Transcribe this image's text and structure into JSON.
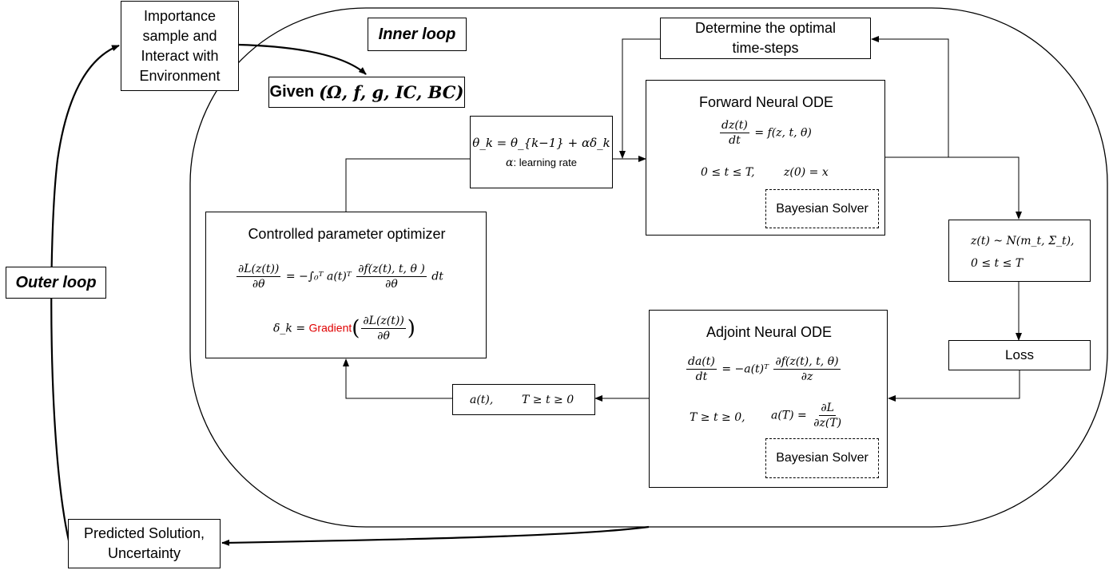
{
  "outer": {
    "loop_label": "Outer loop",
    "importance_text": [
      "Importance",
      "sample and",
      "Interact with",
      "Environment"
    ],
    "predicted_text": [
      "Predicted Solution,",
      "Uncertainty"
    ]
  },
  "inner": {
    "loop_label": "Inner loop",
    "given_word": "Given",
    "given_math": "(Ω, f, g, IC, BC)"
  },
  "timesteps": {
    "text": [
      "Determine the optimal",
      "time-steps"
    ]
  },
  "update": {
    "equation": "θ_k = θ_{k−1} + αδ_k",
    "alpha": "α",
    "alpha_desc": ": learning rate"
  },
  "forward": {
    "title": "Forward Neural ODE",
    "eq_lhs_num": "dz(t)",
    "eq_lhs_den": "dt",
    "eq_rhs": "= f(z, t, θ)",
    "cond_range": "0 ≤ t ≤ T,",
    "cond_init": "z(0) = x",
    "solver": "Bayesian Solver"
  },
  "distribution": {
    "line1": "z(t) ~ N(m_t, Σ_t),",
    "line2": "0 ≤ t ≤ T"
  },
  "loss": {
    "label": "Loss"
  },
  "adjoint": {
    "title": "Adjoint Neural ODE",
    "eq_lhs_num": "da(t)",
    "eq_lhs_den": "dt",
    "eq_mid": "= −a(t)ᵀ",
    "eq_rhs_num": "∂f(z(t), t, θ)",
    "eq_rhs_den": "∂z",
    "cond_range": "T ≥ t ≥ 0,",
    "cond_lhs": "a(T) =",
    "cond_num": "∂L",
    "cond_den": "∂z(T)",
    "solver": "Bayesian Solver"
  },
  "adjoint_out": {
    "left": "a(t),",
    "right": "T ≥ t ≥ 0"
  },
  "optimizer": {
    "title": "Controlled parameter optimizer",
    "grad_num": "∂L(z(t))",
    "grad_den": "∂θ",
    "integral": "= −∫₀ᵀ a(t)ᵀ",
    "f_num": "∂f(z(t), t, θ )",
    "f_den": "∂θ",
    "dt": "dt",
    "delta_lhs": "δ_k =",
    "gradient_word": "Gradient",
    "delta_num": "∂L(z(t))",
    "delta_den": "∂θ"
  }
}
